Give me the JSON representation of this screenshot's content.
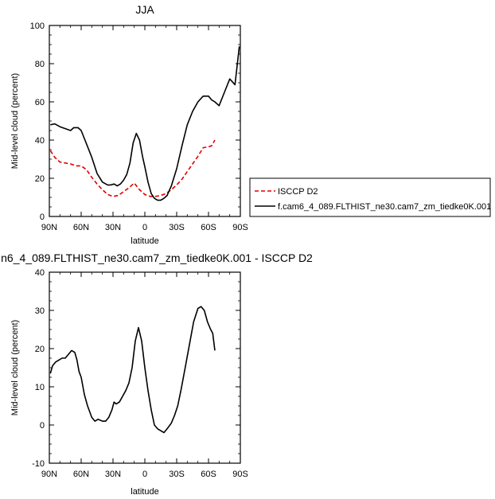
{
  "chart_data": [
    {
      "type": "line",
      "title": "JJA",
      "xlabel": "latitude",
      "ylabel": "Mid-level cloud (percent)",
      "xlim": [
        90,
        -90
      ],
      "ylim": [
        0,
        100
      ],
      "x_ticks": [
        90,
        60,
        30,
        0,
        -30,
        -60,
        -90
      ],
      "x_tick_labels": [
        "90N",
        "60N",
        "30N",
        "0",
        "30S",
        "60S",
        "90S"
      ],
      "y_ticks": [
        0,
        20,
        40,
        60,
        80,
        100
      ],
      "y_tick_labels": [
        "0",
        "20",
        "40",
        "60",
        "80",
        "100"
      ],
      "legend_position": "right",
      "series": [
        {
          "name": "ISCCP D2",
          "color": "#e00000",
          "dash": "dashed",
          "x": [
            89,
            85,
            80,
            75,
            70,
            65,
            60,
            55,
            50,
            45,
            40,
            35,
            30,
            25,
            20,
            15,
            10,
            5,
            0,
            -5,
            -10,
            -15,
            -20,
            -25,
            -30,
            -35,
            -40,
            -45,
            -50,
            -55,
            -60,
            -63,
            -66
          ],
          "y": [
            34.5,
            31,
            28.5,
            28,
            27.5,
            26.5,
            26.5,
            24.5,
            20.5,
            17,
            14,
            11.5,
            10.5,
            11,
            13,
            15,
            17.5,
            14,
            11.5,
            10.5,
            10.5,
            11,
            12,
            14,
            16.5,
            19.5,
            23.5,
            27.5,
            31.5,
            36,
            36.5,
            37,
            40
          ]
        },
        {
          "name": "f.cam6_4_089.FLTHIST_ne30.cam7_zm_tiedke0K.001",
          "color": "#000000",
          "dash": "solid",
          "x": [
            89,
            85,
            80,
            75,
            70,
            67,
            63,
            60,
            55,
            50,
            45,
            40,
            35,
            32,
            29,
            26,
            23,
            20,
            17,
            14,
            11,
            8,
            5,
            2,
            0,
            -3,
            -6,
            -9,
            -12,
            -15,
            -18,
            -21,
            -25,
            -30,
            -35,
            -40,
            -45,
            -50,
            -55,
            -60,
            -63,
            -66,
            -70,
            -75,
            -80,
            -85,
            -89
          ],
          "y": [
            48,
            48.5,
            47,
            46,
            45,
            46.5,
            46.5,
            45,
            38,
            31,
            22.5,
            18,
            16.5,
            16.5,
            17,
            16,
            17,
            19,
            22,
            28,
            38.5,
            43.5,
            40,
            31,
            26,
            18,
            12,
            9.5,
            8.5,
            8.5,
            9.5,
            11,
            16,
            25,
            37,
            48,
            55,
            60,
            63,
            63,
            61,
            60,
            58,
            65,
            72,
            69,
            89
          ]
        }
      ]
    },
    {
      "type": "line",
      "title": "n6_4_089.FLTHIST_ne30.cam7_zm_tiedke0K.001 - ISCCP D2",
      "xlabel": "latitude",
      "ylabel": "Mid-level cloud (percent)",
      "xlim": [
        90,
        -90
      ],
      "ylim": [
        -10,
        40
      ],
      "x_ticks": [
        90,
        60,
        30,
        0,
        -30,
        -60,
        -90
      ],
      "x_tick_labels": [
        "90N",
        "60N",
        "30N",
        "0",
        "30S",
        "60S",
        "90S"
      ],
      "y_ticks": [
        -10,
        0,
        10,
        20,
        30,
        40
      ],
      "y_tick_labels": [
        "-10",
        "0",
        "10",
        "20",
        "30",
        "40"
      ],
      "series": [
        {
          "color": "#000000",
          "dash": "solid",
          "x": [
            89,
            87,
            84,
            81,
            78,
            75,
            72,
            69,
            66,
            64,
            62,
            60,
            57,
            54,
            50,
            47,
            44,
            40,
            37,
            34,
            31,
            29,
            27,
            24,
            21,
            18,
            15,
            12,
            9,
            6,
            3,
            0,
            -3,
            -6,
            -9,
            -12,
            -15,
            -18,
            -21,
            -25,
            -28,
            -31,
            -34,
            -38,
            -42,
            -46,
            -50,
            -53,
            -56,
            -59,
            -62,
            -64,
            -66
          ],
          "y": [
            13.5,
            15.5,
            16.5,
            17,
            17.5,
            17.5,
            18.5,
            19.5,
            19,
            17,
            14,
            12.5,
            8,
            5,
            2,
            1,
            1.5,
            1,
            1,
            2,
            4,
            6,
            5.5,
            6,
            7.5,
            9,
            11,
            15,
            22,
            25.5,
            22,
            15,
            9,
            4,
            0,
            -1,
            -1.5,
            -2,
            -1,
            0.5,
            2.5,
            5,
            9,
            15,
            21,
            27,
            30.5,
            31,
            30,
            27,
            25,
            24,
            19.5
          ]
        }
      ]
    }
  ]
}
